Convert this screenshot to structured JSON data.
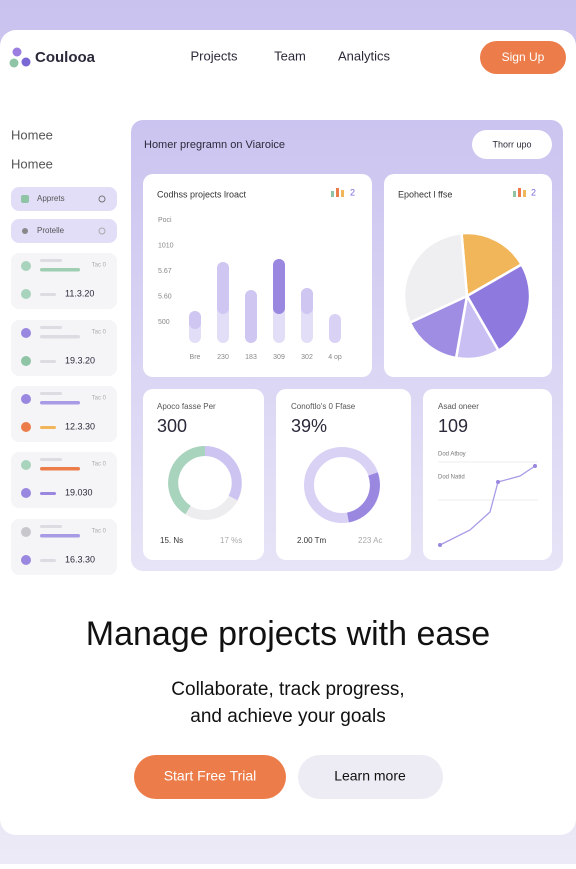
{
  "header": {
    "logo": "Coulooa",
    "nav": [
      "Projects",
      "Team",
      "Analytics"
    ],
    "cta": "Sign Up"
  },
  "sidebar": {
    "items": [
      "Homee",
      "Homee"
    ],
    "pills": [
      "Apprets",
      "Protelle"
    ],
    "cards": [
      {
        "tag": "Tac 0",
        "value": "11.3.20"
      },
      {
        "tag": "Tac 0",
        "value": "19.3.20"
      },
      {
        "tag": "Tac 0",
        "value": "12.3.30"
      },
      {
        "tag": "Tac 0",
        "value": "19.030"
      },
      {
        "tag": "Tac 0",
        "value": "16.3.30"
      }
    ]
  },
  "dashboard": {
    "title": "Homer pregramn on Viaroice",
    "button": "Thorr upo",
    "bar_card": {
      "title": "Codhss projects lroact",
      "badge": "2",
      "y_labels": [
        "Poci",
        "1010",
        "5.67",
        "5.60",
        "500"
      ],
      "x_labels": [
        "Bre",
        "230",
        "183",
        "309",
        "302",
        "4 op"
      ]
    },
    "pie_card": {
      "title": "Epohect l ffse",
      "badge": "2"
    },
    "stats": [
      {
        "title": "Apoco fasse Per",
        "value": "300",
        "foot": [
          "15. Ns",
          "17 %s"
        ]
      },
      {
        "title": "Conoftlo's 0 Ffase",
        "value": "39%",
        "foot": [
          "2.00 Tm",
          "223 Ac"
        ]
      },
      {
        "title": "Asad oneer",
        "value": "109",
        "legend": [
          "Dod Atboy",
          "Dod Natid"
        ]
      }
    ]
  },
  "hero": {
    "headline": "Manage projects with ease",
    "subtitle": [
      "Collaborate, track progress,",
      "and achieve your goals"
    ],
    "primary": "Start Free Trial",
    "secondary": "Learn more"
  }
}
